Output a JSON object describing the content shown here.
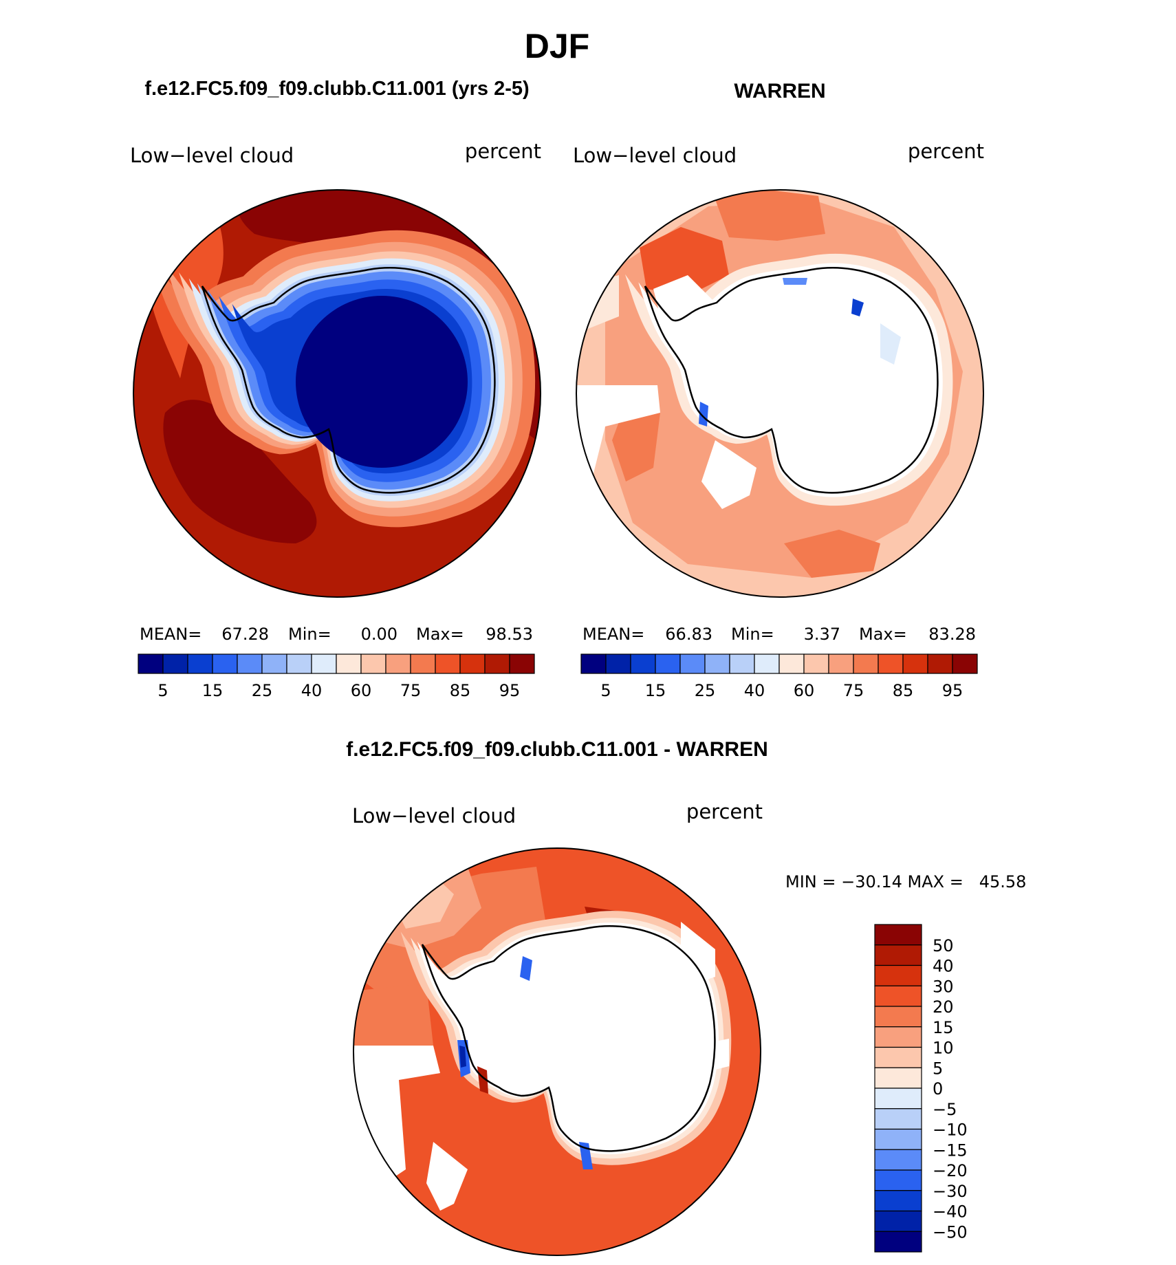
{
  "title": "DJF",
  "panels": [
    {
      "header": "f.e12.FC5.f09_f09.clubb.C11.001 (yrs 2-5)",
      "field_label": "Low−level cloud",
      "units": "percent",
      "stats": {
        "mean_label": "MEAN=",
        "mean": "67.28",
        "min_label": "Min=",
        "min": "0.00",
        "max_label": "Max=",
        "max": "98.53"
      },
      "colorbar_ticks": [
        "5",
        "15",
        "25",
        "40",
        "60",
        "75",
        "85",
        "95"
      ]
    },
    {
      "header": "WARREN",
      "field_label": "Low−level cloud",
      "units": "percent",
      "stats": {
        "mean_label": "MEAN=",
        "mean": "66.83",
        "min_label": "Min=",
        "min": "3.37",
        "max_label": "Max=",
        "max": "83.28"
      },
      "colorbar_ticks": [
        "5",
        "15",
        "25",
        "40",
        "60",
        "75",
        "85",
        "95"
      ]
    },
    {
      "header": "f.e12.FC5.f09_f09.clubb.C11.001 - WARREN",
      "field_label": "Low−level cloud",
      "units": "percent",
      "stats_text": "MIN = −30.14 MAX =   45.58",
      "colorbar_ticks": [
        "50",
        "40",
        "30",
        "20",
        "15",
        "10",
        "5",
        "0",
        "−5",
        "−10",
        "−15",
        "−20",
        "−30",
        "−40",
        "−50"
      ]
    }
  ],
  "colors": {
    "abs_scale": [
      "#00007f",
      "#0022a8",
      "#0a3fd0",
      "#2a62f0",
      "#5b8bf8",
      "#8fb2f8",
      "#b9d0f8",
      "#dfecfb",
      "#fde8da",
      "#fcc7ad",
      "#f8a07e",
      "#f37a4f",
      "#ee5328",
      "#d6320d",
      "#b01a04",
      "#8a0404"
    ],
    "diff_scale": [
      "#8a0404",
      "#b01a04",
      "#d6320d",
      "#ee5328",
      "#f37a4f",
      "#f8a07e",
      "#fcc7ad",
      "#fde8da",
      "#dfecfb",
      "#b9d0f8",
      "#8fb2f8",
      "#5b8bf8",
      "#2a62f0",
      "#0a3fd0",
      "#0022a8",
      "#00007f"
    ],
    "missing": "#ffffff",
    "coastline": "#000000"
  }
}
